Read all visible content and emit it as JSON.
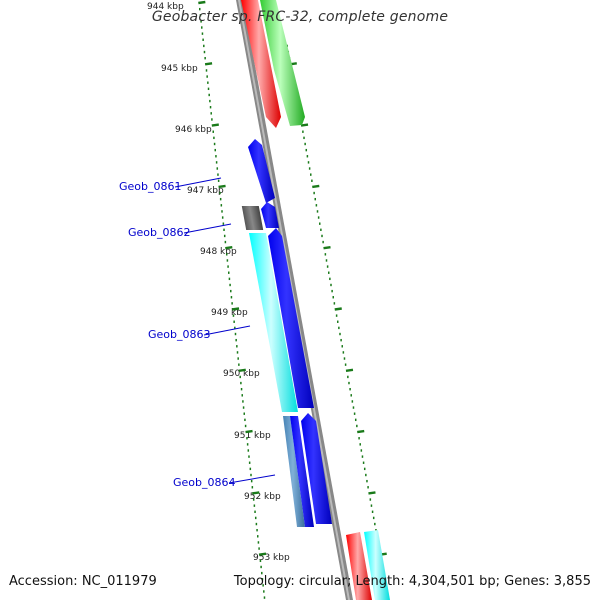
{
  "title": "Geobacter sp. FRC-32, complete genome",
  "footer": {
    "accession": "Accession: NC_011979",
    "topology": "Topology: circular; Length: 4,304,501 bp; Genes: 3,855"
  },
  "ruler": {
    "labels": [
      "944 kbp",
      "945 kbp",
      "946 kbp",
      "947 kbp",
      "948 kbp",
      "949 kbp",
      "950 kbp",
      "951 kbp",
      "952 kbp",
      "953 kbp"
    ],
    "tick_color": "#1a7a1a"
  },
  "gene_labels": [
    "Geob_0861",
    "Geob_0862",
    "Geob_0863",
    "Geob_0864"
  ],
  "colors": {
    "backbone": "#888888",
    "red": "#ff0000",
    "green": "#33cc33",
    "blue": "#0000ee",
    "cyan": "#00ffff",
    "dark_gray": "#555555",
    "steel_blue": "#4682b4",
    "label_blue": "#0000cc"
  }
}
